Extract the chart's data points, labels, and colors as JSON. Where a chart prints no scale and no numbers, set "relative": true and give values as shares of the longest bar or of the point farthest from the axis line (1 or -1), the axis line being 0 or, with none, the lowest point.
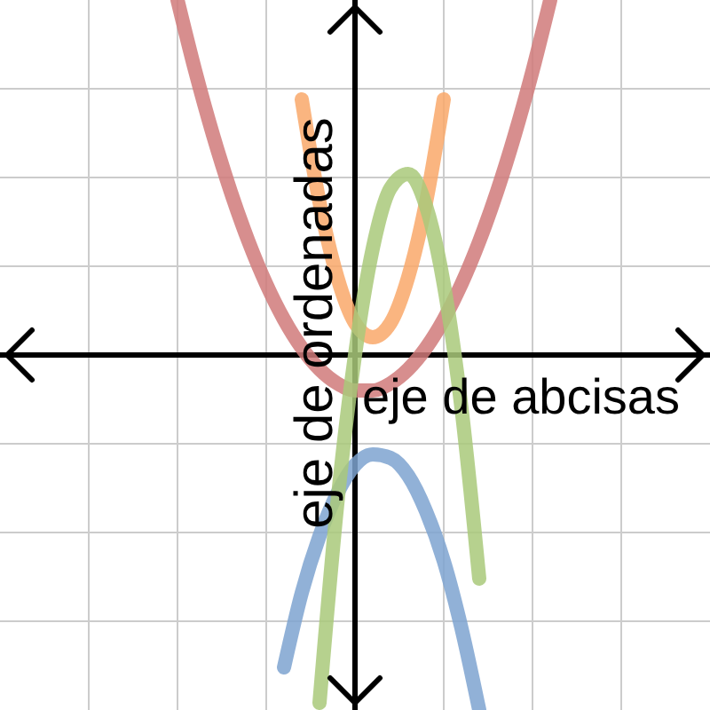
{
  "chart_data": {
    "type": "line",
    "relative": true,
    "xlabel": "eje de abcisas",
    "ylabel": "eje de ordenadas",
    "grid": true,
    "tick_labels": false,
    "marker": "none",
    "categories": [
      null,
      null,
      null,
      null,
      null,
      null,
      null,
      null,
      null,
      null,
      null,
      null,
      null,
      null,
      null,
      null,
      null,
      null,
      null,
      null,
      null,
      null,
      null,
      null,
      null,
      null,
      null,
      null,
      null,
      null,
      null,
      null,
      null,
      null,
      null,
      null,
      null,
      null,
      null,
      null,
      null
    ],
    "series": [
      {
        "color": "#d07a7a",
        "values": [
          null,
          null,
          null,
          null,
          null,
          null,
          null,
          null,
          null,
          null,
          1.0,
          0.8,
          0.62,
          0.46,
          0.32,
          0.2,
          0.1,
          0.02,
          -0.04,
          -0.08,
          -0.1,
          -0.1,
          -0.08,
          -0.04,
          0.02,
          0.1,
          0.2,
          0.32,
          0.46,
          0.62,
          0.8,
          1.0,
          null,
          null,
          null,
          null,
          null,
          null,
          null,
          null,
          null
        ]
      },
      {
        "color": "#f9a86a",
        "values": [
          null,
          null,
          null,
          null,
          null,
          null,
          null,
          null,
          null,
          null,
          null,
          null,
          null,
          null,
          null,
          null,
          null,
          0.72,
          0.43,
          0.22,
          0.09,
          0.05,
          0.09,
          0.22,
          0.43,
          0.72,
          null,
          null,
          null,
          null,
          null,
          null,
          null,
          null,
          null,
          null,
          null,
          null,
          null,
          null,
          null
        ]
      },
      {
        "color": "#7ea3d0",
        "values": [
          null,
          null,
          null,
          null,
          null,
          null,
          null,
          null,
          null,
          null,
          null,
          null,
          null,
          null,
          null,
          null,
          -0.88,
          -0.67,
          -0.51,
          -0.39,
          -0.31,
          -0.28,
          -0.29,
          -0.34,
          -0.44,
          -0.58,
          -0.77,
          -1.0,
          null,
          null,
          null,
          null,
          null,
          null,
          null,
          null,
          null,
          null,
          null,
          null,
          null
        ]
      },
      {
        "color": "#a9c97a",
        "values": [
          null,
          null,
          null,
          null,
          null,
          null,
          null,
          null,
          null,
          null,
          null,
          null,
          null,
          null,
          null,
          null,
          null,
          null,
          -0.98,
          -0.42,
          0.0,
          0.3,
          0.47,
          0.51,
          0.42,
          0.2,
          -0.15,
          -0.63,
          null,
          null,
          null,
          null,
          null,
          null,
          null,
          null,
          null,
          null,
          null,
          null,
          null
        ]
      }
    ]
  }
}
